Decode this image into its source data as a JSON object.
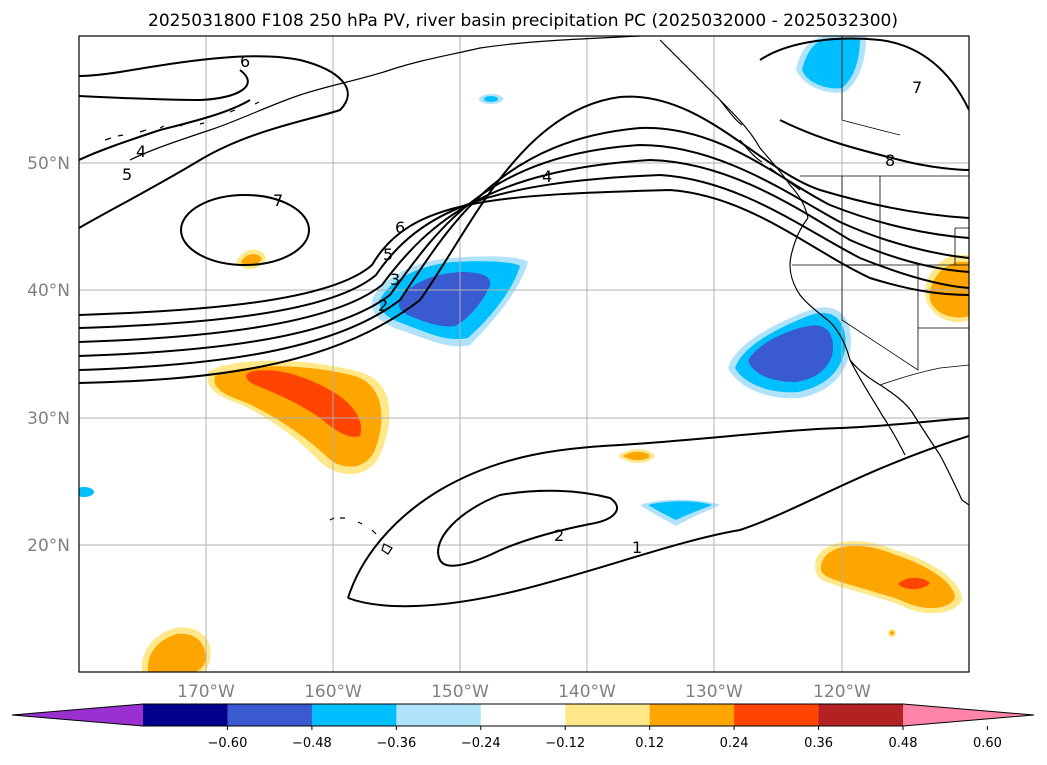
{
  "title": "2025031800 F108 250 hPa PV, river basin precipitation PC (2025032000 - 2025032300)",
  "map": {
    "lon_range": [
      -180,
      -110
    ],
    "lat_range": [
      10,
      60
    ],
    "lat_labels": [
      "20°N",
      "30°N",
      "40°N",
      "50°N"
    ],
    "lon_labels": [
      "170°W",
      "160°W",
      "150°W",
      "140°W",
      "130°W",
      "120°W"
    ],
    "gridlines": true,
    "contour_labels": [
      "1",
      "2",
      "2",
      "3",
      "4",
      "4",
      "5",
      "5",
      "6",
      "6",
      "7",
      "7",
      "8"
    ]
  },
  "colorbar": {
    "ticks": [
      "−0.60",
      "−0.48",
      "−0.36",
      "−0.24",
      "−0.12",
      "0.12",
      "0.24",
      "0.36",
      "0.48",
      "0.60"
    ],
    "colors": [
      "#9b30d0",
      "#00008b",
      "#3a5bd0",
      "#00bfff",
      "#b0e2fa",
      "#ffffff",
      "#ffe88a",
      "#ffa500",
      "#ff4500",
      "#b22222",
      "#ff85a8"
    ],
    "extend": "both"
  }
}
